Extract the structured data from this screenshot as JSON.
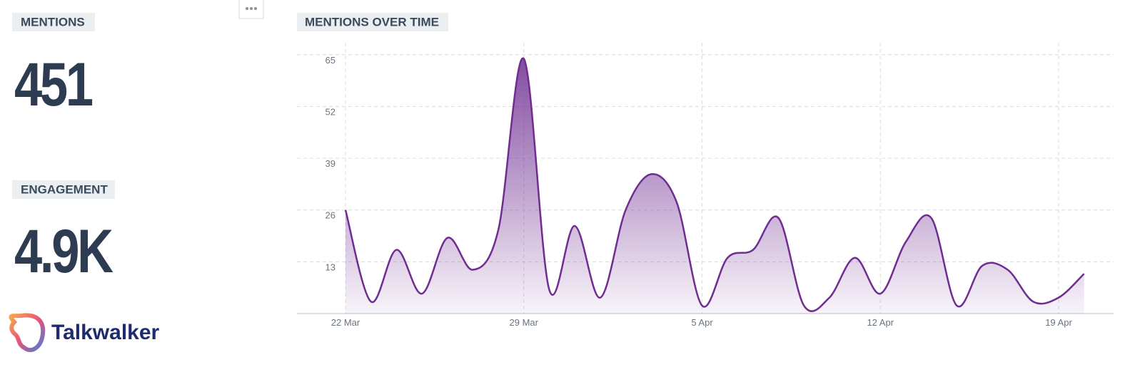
{
  "kpis": [
    {
      "label": "MENTIONS",
      "value": "451"
    },
    {
      "label": "ENGAGEMENT",
      "value": "4.9K"
    }
  ],
  "brand": "Talkwalker",
  "chart_data": {
    "type": "area",
    "title": "MENTIONS OVER TIME",
    "categories": [
      "22 Mar",
      null,
      null,
      null,
      null,
      null,
      null,
      "29 Mar",
      null,
      null,
      null,
      null,
      null,
      null,
      "5 Apr",
      null,
      null,
      null,
      null,
      null,
      null,
      "12 Apr",
      null,
      null,
      null,
      null,
      null,
      null,
      "19 Apr",
      null
    ],
    "values": [
      26,
      3,
      16,
      5,
      19,
      11,
      21,
      64,
      6,
      22,
      4,
      26,
      35,
      28,
      2,
      14,
      16,
      24,
      2,
      4,
      14,
      5,
      18,
      24,
      2,
      12,
      11,
      3,
      4,
      10
    ],
    "color": "#6f2c91",
    "ylim": [
      0,
      68
    ],
    "yticks": [
      13,
      26,
      39,
      52,
      65
    ],
    "grid": true
  }
}
